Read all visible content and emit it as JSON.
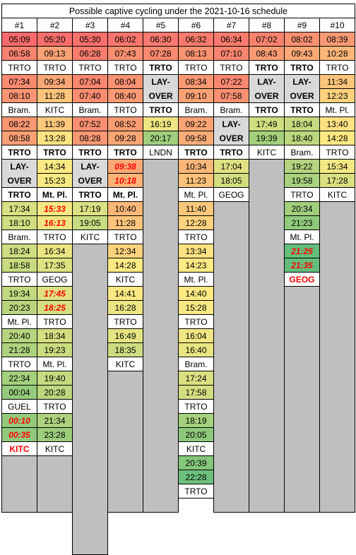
{
  "title": "Possible captive cycling under the 2021-10-16 schedule",
  "colors": {
    "heat_scale_low": "#63be7b",
    "heat_scale_mid": "#ffeb84",
    "heat_scale_high": "#f8696b",
    "layover": "#d9d9d9",
    "empty": "#bfbfbf",
    "location": "#ffffff",
    "late_text": "#ff0000"
  },
  "columns": [
    {
      "header": "#1",
      "cells": [
        {
          "t": "05:09",
          "c": "#f8696b"
        },
        {
          "t": "06:58",
          "c": "#f98370"
        },
        {
          "t": "TRTO",
          "c": "#ffffff"
        },
        {
          "t": "07:34",
          "c": "#fa8b71"
        },
        {
          "t": "08:10",
          "c": "#fa9473"
        },
        {
          "t": "Bram.",
          "c": "#ffffff"
        },
        {
          "t": "08:22",
          "c": "#fa9673"
        },
        {
          "t": "08:58",
          "c": "#fb9f75"
        },
        {
          "t": "TRTO",
          "c": "#ffffff",
          "s": "b"
        },
        {
          "t": "LAY-\nOVER",
          "c": "#d9d9d9",
          "s": "b",
          "span": 2
        },
        {
          "t": "TRTO",
          "c": "#ffffff",
          "s": "b"
        },
        {
          "t": "17:34",
          "c": "#d7e082"
        },
        {
          "t": "18:10",
          "c": "#d0de81"
        },
        {
          "t": "Bram.",
          "c": "#ffffff"
        },
        {
          "t": "18:24",
          "c": "#cedd81"
        },
        {
          "t": "18:58",
          "c": "#c8db80"
        },
        {
          "t": "TRTO",
          "c": "#ffffff"
        },
        {
          "t": "19:34",
          "c": "#c1d980"
        },
        {
          "t": "20:23",
          "c": "#b9d67f"
        },
        {
          "t": "Mt. Pl.",
          "c": "#ffffff"
        },
        {
          "t": "20:40",
          "c": "#b6d57f"
        },
        {
          "t": "21:28",
          "c": "#aed37e"
        },
        {
          "t": "TRTO",
          "c": "#ffffff"
        },
        {
          "t": "22:34",
          "c": "#a3d07d"
        },
        {
          "t": "00:04",
          "c": "#94cb7c"
        },
        {
          "t": "GUEL",
          "c": "#ffffff"
        },
        {
          "t": "00:10",
          "c": "#93cb7c",
          "s": "ri"
        },
        {
          "t": "00:35",
          "c": "#8fca7c",
          "s": "ri"
        },
        {
          "t": "KITC",
          "c": "#ffffff",
          "s": "red"
        },
        {
          "t": "",
          "c": "#bfbfbf",
          "span": 4
        }
      ]
    },
    {
      "header": "#2",
      "cells": [
        {
          "t": "05:20",
          "c": "#f86e6c"
        },
        {
          "t": "09:13",
          "c": "#fba376"
        },
        {
          "t": "TRTO",
          "c": "#ffffff"
        },
        {
          "t": "09:34",
          "c": "#fba876"
        },
        {
          "t": "11:28",
          "c": "#fdc47c"
        },
        {
          "t": "KITC",
          "c": "#ffffff"
        },
        {
          "t": "11:39",
          "c": "#fdc77c"
        },
        {
          "t": "13:28",
          "c": "#fee282"
        },
        {
          "t": "TRTO",
          "c": "#ffffff",
          "s": "b"
        },
        {
          "t": "14:34",
          "c": "#fee983"
        },
        {
          "t": "15:23",
          "c": "#f7e984"
        },
        {
          "t": "Mt. Pl.",
          "c": "#ffffff",
          "s": "b"
        },
        {
          "t": "15:33",
          "c": "#f5e883",
          "s": "ri"
        },
        {
          "t": "16:13",
          "c": "#eee683",
          "s": "ri"
        },
        {
          "t": "TRTO",
          "c": "#ffffff"
        },
        {
          "t": "16:34",
          "c": "#ebe583"
        },
        {
          "t": "17:35",
          "c": "#dfe282"
        },
        {
          "t": "GEOG",
          "c": "#ffffff"
        },
        {
          "t": "17:45",
          "c": "#dde182",
          "s": "ri"
        },
        {
          "t": "18:25",
          "c": "#d5df81",
          "s": "ri"
        },
        {
          "t": "TRTO",
          "c": "#ffffff"
        },
        {
          "t": "18:34",
          "c": "#d3de81"
        },
        {
          "t": "19:23",
          "c": "#cadc80"
        },
        {
          "t": "Mt. Pl.",
          "c": "#ffffff"
        },
        {
          "t": "19:40",
          "c": "#c5da80"
        },
        {
          "t": "20:28",
          "c": "#bcd77f"
        },
        {
          "t": "TRTO",
          "c": "#ffffff"
        },
        {
          "t": "21:34",
          "c": "#acd27e"
        },
        {
          "t": "23:28",
          "c": "#9bcd7d"
        },
        {
          "t": "KITC",
          "c": "#ffffff"
        },
        {
          "t": "",
          "c": "#bfbfbf",
          "span": 4
        }
      ]
    },
    {
      "header": "#3",
      "cells": [
        {
          "t": "05:30",
          "c": "#f8706c"
        },
        {
          "t": "06:28",
          "c": "#f97c6f"
        },
        {
          "t": "TRTO",
          "c": "#ffffff"
        },
        {
          "t": "07:04",
          "c": "#f9866f"
        },
        {
          "t": "07:40",
          "c": "#fa8d71"
        },
        {
          "t": "Bram.",
          "c": "#ffffff"
        },
        {
          "t": "07:52",
          "c": "#fa8f72"
        },
        {
          "t": "08:28",
          "c": "#fa9873"
        },
        {
          "t": "TRTO",
          "c": "#ffffff",
          "s": "b"
        },
        {
          "t": "LAY-\nOVER",
          "c": "#d9d9d9",
          "s": "b",
          "span": 2
        },
        {
          "t": "TRTO",
          "c": "#ffffff",
          "s": "b"
        },
        {
          "t": "17:19",
          "c": "#dbe082"
        },
        {
          "t": "19:05",
          "c": "#c7db80"
        },
        {
          "t": "KITC",
          "c": "#ffffff"
        },
        {
          "t": "",
          "c": "#bfbfbf",
          "span": 22
        }
      ]
    },
    {
      "header": "#4",
      "cells": [
        {
          "t": "06:02",
          "c": "#f9756d"
        },
        {
          "t": "07:43",
          "c": "#fa8e71"
        },
        {
          "t": "TRTO",
          "c": "#ffffff"
        },
        {
          "t": "08:04",
          "c": "#fa9172"
        },
        {
          "t": "08:40",
          "c": "#fb9a74"
        },
        {
          "t": "TRTO",
          "c": "#ffffff"
        },
        {
          "t": "08:52",
          "c": "#fb9d74"
        },
        {
          "t": "09:28",
          "c": "#fba676"
        },
        {
          "t": "TRTO",
          "c": "#ffffff",
          "s": "b"
        },
        {
          "t": "09:38",
          "c": "#fba876",
          "s": "ri"
        },
        {
          "t": "10:18",
          "c": "#fcb378",
          "s": "ri"
        },
        {
          "t": "Mt. Pl.",
          "c": "#ffffff",
          "s": "b"
        },
        {
          "t": "10:40",
          "c": "#fcb879"
        },
        {
          "t": "11:28",
          "c": "#fdc47c"
        },
        {
          "t": "TRTO",
          "c": "#ffffff"
        },
        {
          "t": "12:34",
          "c": "#fed37f"
        },
        {
          "t": "14:28",
          "c": "#fee983"
        },
        {
          "t": "KITC",
          "c": "#ffffff"
        },
        {
          "t": "14:41",
          "c": "#fde983"
        },
        {
          "t": "16:28",
          "c": "#ece683"
        },
        {
          "t": "TRTO",
          "c": "#ffffff"
        },
        {
          "t": "16:49",
          "c": "#e6e482"
        },
        {
          "t": "18:35",
          "c": "#cedd81"
        },
        {
          "t": "KITC",
          "c": "#ffffff"
        },
        {
          "t": "",
          "c": "#bfbfbf",
          "span": 10
        }
      ]
    },
    {
      "header": "#5",
      "cells": [
        {
          "t": "06:30",
          "c": "#f97a6e"
        },
        {
          "t": "07:28",
          "c": "#fa896f"
        },
        {
          "t": "TRTO",
          "c": "#ffffff",
          "s": "b"
        },
        {
          "t": "LAY-\nOVER",
          "c": "#d9d9d9",
          "s": "b",
          "span": 2
        },
        {
          "t": "TRTO",
          "c": "#ffffff",
          "s": "b"
        },
        {
          "t": "16:19",
          "c": "#ede683"
        },
        {
          "t": "20:17",
          "c": "#9fce7d"
        },
        {
          "t": "LNDN",
          "c": "#ffffff"
        },
        {
          "t": "",
          "c": "#bfbfbf",
          "span": 25
        }
      ]
    },
    {
      "header": "#6",
      "cells": [
        {
          "t": "06:32",
          "c": "#f97a6e"
        },
        {
          "t": "08:13",
          "c": "#fa9372"
        },
        {
          "t": "TRTO",
          "c": "#ffffff"
        },
        {
          "t": "08:34",
          "c": "#fa9873"
        },
        {
          "t": "09:10",
          "c": "#fba275"
        },
        {
          "t": "Bram.",
          "c": "#ffffff"
        },
        {
          "t": "09:22",
          "c": "#fba475"
        },
        {
          "t": "09:58",
          "c": "#fbac77"
        },
        {
          "t": "TRTO",
          "c": "#ffffff",
          "s": "b"
        },
        {
          "t": "10:34",
          "c": "#fcb679"
        },
        {
          "t": "11:23",
          "c": "#fdc27b"
        },
        {
          "t": "Mt. Pl.",
          "c": "#ffffff"
        },
        {
          "t": "11:40",
          "c": "#fdc77c"
        },
        {
          "t": "12:28",
          "c": "#fed27e"
        },
        {
          "t": "TRTO",
          "c": "#ffffff"
        },
        {
          "t": "13:34",
          "c": "#fee181"
        },
        {
          "t": "14:23",
          "c": "#fee983"
        },
        {
          "t": "Mt. Pl.",
          "c": "#ffffff"
        },
        {
          "t": "14:40",
          "c": "#fee983"
        },
        {
          "t": "15:28",
          "c": "#f6e984"
        },
        {
          "t": "TRTO",
          "c": "#ffffff"
        },
        {
          "t": "16:04",
          "c": "#f0e683"
        },
        {
          "t": "16:40",
          "c": "#e9e583"
        },
        {
          "t": "Bram.",
          "c": "#ffffff"
        },
        {
          "t": "17:24",
          "c": "#dae082"
        },
        {
          "t": "17:58",
          "c": "#d3de81"
        },
        {
          "t": "TRTO",
          "c": "#ffffff"
        },
        {
          "t": "18:19",
          "c": "#a6d17e"
        },
        {
          "t": "20:05",
          "c": "#8dc97c"
        },
        {
          "t": "KITC",
          "c": "#ffffff"
        },
        {
          "t": "20:39",
          "c": "#84c67b"
        },
        {
          "t": "22:28",
          "c": "#6bc17b"
        },
        {
          "t": "TRTO",
          "c": "#ffffff"
        }
      ]
    },
    {
      "header": "#7",
      "cells": [
        {
          "t": "06:34",
          "c": "#f97b6e"
        },
        {
          "t": "07:10",
          "c": "#f98570"
        },
        {
          "t": "TRTO",
          "c": "#ffffff"
        },
        {
          "t": "07:22",
          "c": "#fa8870"
        },
        {
          "t": "07:58",
          "c": "#fa9072"
        },
        {
          "t": "Bram.",
          "c": "#ffffff"
        },
        {
          "t": "LAY-\nOVER",
          "c": "#d9d9d9",
          "s": "b",
          "span": 2
        },
        {
          "t": "TRTO",
          "c": "#ffffff",
          "s": "b"
        },
        {
          "t": "17:04",
          "c": "#dfe182"
        },
        {
          "t": "18:05",
          "c": "#d2de81"
        },
        {
          "t": "GEOG",
          "c": "#ffffff"
        },
        {
          "t": "",
          "c": "#bfbfbf",
          "span": 22
        }
      ]
    },
    {
      "header": "#8",
      "cells": [
        {
          "t": "07:02",
          "c": "#f9826f"
        },
        {
          "t": "08:43",
          "c": "#fa9b74"
        },
        {
          "t": "TRTO",
          "c": "#ffffff",
          "s": "b"
        },
        {
          "t": "LAY-\nOVER",
          "c": "#d9d9d9",
          "s": "b",
          "span": 2
        },
        {
          "t": "TRTO",
          "c": "#ffffff",
          "s": "b"
        },
        {
          "t": "17:49",
          "c": "#cfde81"
        },
        {
          "t": "19:39",
          "c": "#a3d07d"
        },
        {
          "t": "KITC",
          "c": "#ffffff"
        },
        {
          "t": "",
          "c": "#bfbfbf",
          "span": 25
        }
      ]
    },
    {
      "header": "#9",
      "cells": [
        {
          "t": "08:02",
          "c": "#fa9072"
        },
        {
          "t": "09:43",
          "c": "#fba976"
        },
        {
          "t": "TRTO",
          "c": "#ffffff",
          "s": "b"
        },
        {
          "t": "LAY-\nOVER",
          "c": "#d9d9d9",
          "s": "b",
          "span": 2
        },
        {
          "t": "TRTO",
          "c": "#ffffff",
          "s": "b"
        },
        {
          "t": "18:04",
          "c": "#c5da80"
        },
        {
          "t": "18:40",
          "c": "#bbd77f"
        },
        {
          "t": "Bram.",
          "c": "#ffffff"
        },
        {
          "t": "19:22",
          "c": "#b4d47f"
        },
        {
          "t": "19:58",
          "c": "#a9d27e"
        },
        {
          "t": "TRTO",
          "c": "#ffffff"
        },
        {
          "t": "20:34",
          "c": "#9fce7d"
        },
        {
          "t": "21:23",
          "c": "#90ca7c"
        },
        {
          "t": "Mt. Pl.",
          "c": "#ffffff"
        },
        {
          "t": "21:25",
          "c": "#63be7b",
          "s": "ri"
        },
        {
          "t": "21:35",
          "c": "#63be7b",
          "s": "ri"
        },
        {
          "t": "GEOG",
          "c": "#ffffff",
          "s": "red"
        },
        {
          "t": "",
          "c": "#bfbfbf",
          "span": 16
        }
      ]
    },
    {
      "header": "#10",
      "cells": [
        {
          "t": "08:39",
          "c": "#fa9a74"
        },
        {
          "t": "10:28",
          "c": "#fcb679"
        },
        {
          "t": "TRTO",
          "c": "#ffffff"
        },
        {
          "t": "11:34",
          "c": "#fdc57c"
        },
        {
          "t": "12:23",
          "c": "#fed17e"
        },
        {
          "t": "Mt. Pl.",
          "c": "#ffffff"
        },
        {
          "t": "13:40",
          "c": "#fee282"
        },
        {
          "t": "14:28",
          "c": "#fee983"
        },
        {
          "t": "TRTO",
          "c": "#ffffff"
        },
        {
          "t": "15:34",
          "c": "#f3e784"
        },
        {
          "t": "17:28",
          "c": "#d9e082"
        },
        {
          "t": "KITC",
          "c": "#ffffff"
        },
        {
          "t": "",
          "c": "#bfbfbf",
          "span": 22
        }
      ]
    }
  ]
}
